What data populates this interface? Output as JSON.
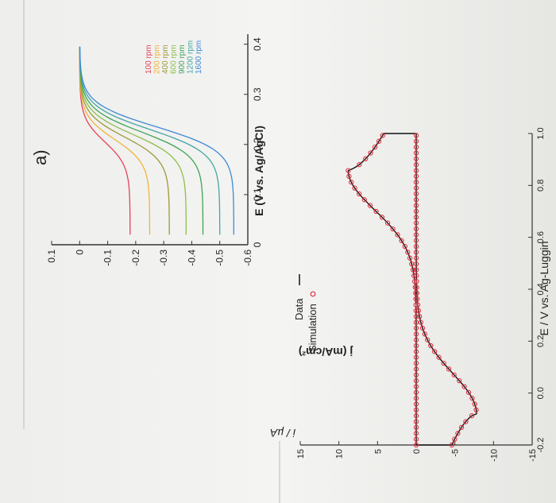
{
  "chart_data": [
    {
      "type": "line",
      "panel_label": "a)",
      "xlabel": "E (V vs. Ag/AgCl)",
      "ylabel": "j (mA/cm²)",
      "xlim": [
        0,
        0.42
      ],
      "ylim": [
        -0.6,
        0.1
      ],
      "x_ticks": [
        "0",
        "0.1",
        "0.2",
        "0.3",
        "0.4"
      ],
      "y_ticks": [
        "0.1",
        "0",
        "-0.1",
        "-0.2",
        "-0.3",
        "-0.4",
        "-0.5",
        "-0.6"
      ],
      "legend_position": "bottom-right",
      "series": [
        {
          "name": "100 rpm",
          "color": "#e4435c",
          "limit": -0.18,
          "e_half": 0.155
        },
        {
          "name": "200 rpm",
          "color": "#f0b43c",
          "limit": -0.25,
          "e_half": 0.16
        },
        {
          "name": "400 rpm",
          "color": "#9c9a3a",
          "limit": -0.32,
          "e_half": 0.165
        },
        {
          "name": "600 rpm",
          "color": "#8cbf4c",
          "limit": -0.38,
          "e_half": 0.17
        },
        {
          "name": "900 rpm",
          "color": "#3fa456",
          "limit": -0.44,
          "e_half": 0.175
        },
        {
          "name": "1200 rpm",
          "color": "#42a7a4",
          "limit": -0.5,
          "e_half": 0.18
        },
        {
          "name": "1600 rpm",
          "color": "#3d8ad6",
          "limit": -0.55,
          "e_half": 0.185
        }
      ]
    },
    {
      "type": "line",
      "xlabel": "E / V vs. Ag-Luggin",
      "ylabel": "i / µA",
      "xlim": [
        -0.2,
        1.0
      ],
      "ylim": [
        -15,
        15
      ],
      "x_ticks": [
        "-0.2",
        "0.0",
        "0.2",
        "0.4",
        "0.6",
        "0.8",
        "1.0"
      ],
      "y_ticks": [
        "15",
        "10",
        "5",
        "0",
        "-5",
        "-10",
        "-15"
      ],
      "legend_position": "top-left",
      "series": [
        {
          "name": "Data",
          "color": "#111111",
          "style": "line"
        },
        {
          "name": "Simulation",
          "color": "#e03040",
          "style": "circles"
        }
      ],
      "cv": {
        "e0": 0.4,
        "anodic_peak": {
          "x": 0.86,
          "y": 8.8
        },
        "cathodic_peak": {
          "x": -0.08,
          "y": -7.8
        },
        "forward_tail": {
          "x": 0.95,
          "y": 4.2
        },
        "reverse_tail": {
          "x": -0.2,
          "y": -4.6
        }
      }
    }
  ]
}
